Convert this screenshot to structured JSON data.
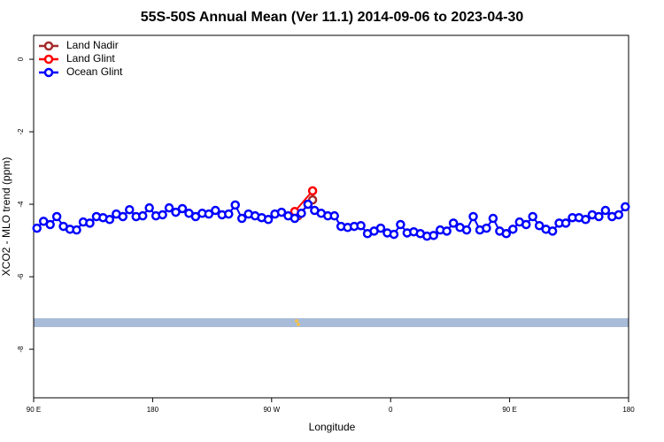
{
  "chart_data": {
    "type": "line",
    "title": "55S-50S Annual Mean (Ver 11.1)   2014-09-06 to 2023-04-30",
    "xlabel": "Longitude",
    "ylabel": "XCO2 - MLO trend (ppm)",
    "xlim": [
      90,
      540
    ],
    "ylim": [
      0.66,
      -9.34
    ],
    "xticks": [
      {
        "value": 90,
        "label": "90 E"
      },
      {
        "value": 180,
        "label": "180"
      },
      {
        "value": 270,
        "label": "90 W"
      },
      {
        "value": 360,
        "label": "0"
      },
      {
        "value": 450,
        "label": "90 E"
      },
      {
        "value": 540,
        "label": "180"
      }
    ],
    "yticks": [
      0,
      -2,
      -4,
      -6,
      -8
    ],
    "legend": "top-left",
    "series": [
      {
        "name": "Land Nadir",
        "color": "#a52a2a",
        "x": [
          290,
          297.5,
          301
        ],
        "values": [
          -4.32,
          -4.0,
          -3.88
        ]
      },
      {
        "name": "Land Glint",
        "color": "#ff0000",
        "x": [
          287.5,
          301
        ],
        "values": [
          -4.2,
          -3.63
        ]
      },
      {
        "name": "Ocean Glint",
        "color": "#0000ff",
        "x": [
          92.5,
          97.5,
          102.5,
          107.5,
          112.5,
          117.5,
          122.5,
          127.5,
          132.5,
          137.5,
          142.5,
          147.5,
          152.5,
          157.5,
          162.5,
          167.5,
          172.5,
          177.5,
          182.5,
          187.5,
          192.5,
          197.5,
          202.5,
          207.5,
          212.5,
          217.5,
          222.5,
          227.5,
          232.5,
          237.5,
          242.5,
          247.5,
          252.5,
          257.5,
          262.5,
          267.5,
          272.5,
          277.5,
          282.5,
          287.5,
          292.5,
          297.5,
          302.5,
          307.5,
          312.5,
          317.5,
          322.5,
          327.5,
          332.5,
          337.5,
          342.5,
          347.5,
          352.5,
          357.5,
          362.5,
          367.5,
          372.5,
          377.5,
          382.5,
          387.5,
          392.5,
          397.5,
          402.5,
          407.5,
          412.5,
          417.5,
          422.5,
          427.5,
          432.5,
          437.5,
          442.5,
          447.5,
          452.5,
          457.5,
          462.5,
          467.5,
          472.5,
          477.5,
          482.5,
          487.5,
          492.5,
          497.5,
          502.5,
          507.5,
          512.5,
          517.5,
          522.5,
          527.5,
          532.5,
          537.5
        ],
        "values": [
          -4.66,
          -4.47,
          -4.56,
          -4.34,
          -4.61,
          -4.69,
          -4.71,
          -4.49,
          -4.52,
          -4.34,
          -4.37,
          -4.42,
          -4.27,
          -4.34,
          -4.15,
          -4.34,
          -4.32,
          -4.1,
          -4.32,
          -4.29,
          -4.1,
          -4.22,
          -4.12,
          -4.25,
          -4.34,
          -4.25,
          -4.27,
          -4.17,
          -4.29,
          -4.27,
          -4.02,
          -4.39,
          -4.27,
          -4.32,
          -4.37,
          -4.42,
          -4.27,
          -4.22,
          -4.32,
          -4.39,
          -4.25,
          -4.0,
          -4.17,
          -4.25,
          -4.32,
          -4.32,
          -4.61,
          -4.64,
          -4.61,
          -4.59,
          -4.81,
          -4.74,
          -4.66,
          -4.79,
          -4.83,
          -4.56,
          -4.79,
          -4.76,
          -4.81,
          -4.88,
          -4.86,
          -4.71,
          -4.74,
          -4.52,
          -4.64,
          -4.71,
          -4.34,
          -4.71,
          -4.66,
          -4.39,
          -4.74,
          -4.81,
          -4.69,
          -4.49,
          -4.56,
          -4.34,
          -4.59,
          -4.69,
          -4.74,
          -4.52,
          -4.52,
          -4.37,
          -4.37,
          -4.42,
          -4.29,
          -4.34,
          -4.17,
          -4.34,
          -4.29,
          -4.07
        ]
      }
    ]
  }
}
